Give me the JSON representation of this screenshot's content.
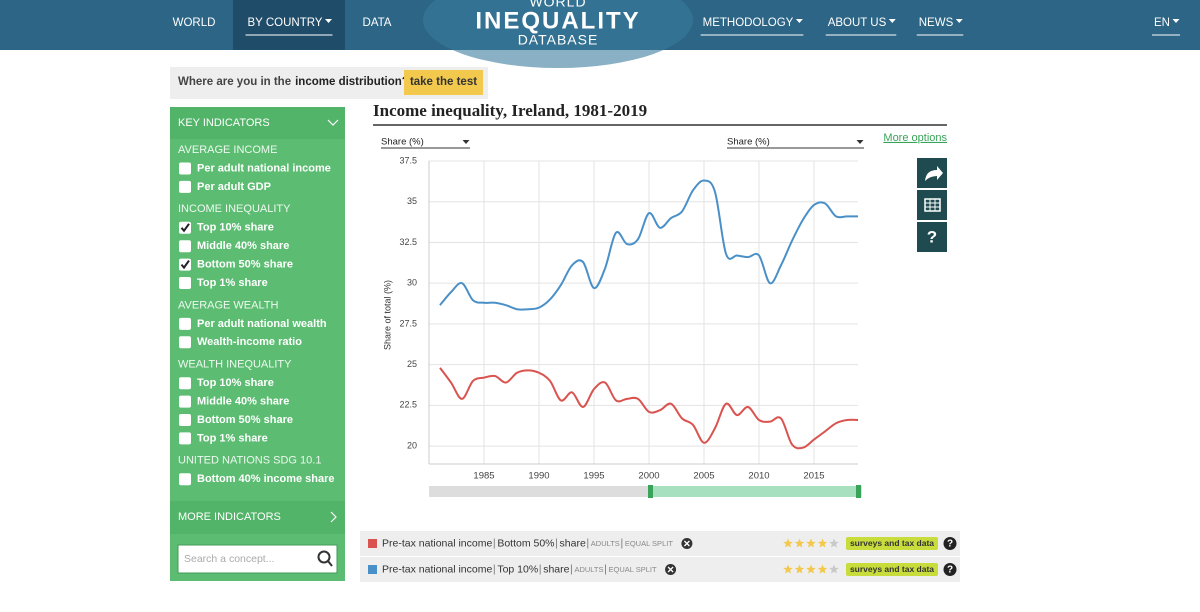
{
  "nav": {
    "items": [
      {
        "label": "WORLD",
        "dropdown": false
      },
      {
        "label": "BY COUNTRY",
        "dropdown": true,
        "active": true
      },
      {
        "label": "DATA",
        "dropdown": false
      },
      {
        "label": "METHODOLOGY",
        "dropdown": true
      },
      {
        "label": "ABOUT US",
        "dropdown": true
      },
      {
        "label": "NEWS",
        "dropdown": true
      },
      {
        "label": "EN",
        "dropdown": true
      }
    ],
    "logo": [
      "WORLD",
      "INEQUALITY",
      "DATABASE"
    ]
  },
  "banner": {
    "text": "Where are you in the",
    "bold": "income distribution?",
    "button": "take the test"
  },
  "sidebar": {
    "header": "KEY INDICATORS",
    "sections": [
      {
        "title": "AVERAGE INCOME",
        "items": [
          {
            "label": "Per adult national income",
            "checked": false
          },
          {
            "label": "Per adult GDP",
            "checked": false
          }
        ]
      },
      {
        "title": "INCOME INEQUALITY",
        "items": [
          {
            "label": "Top 10% share",
            "checked": true
          },
          {
            "label": "Middle 40% share",
            "checked": false
          },
          {
            "label": "Bottom 50% share",
            "checked": true
          },
          {
            "label": "Top 1% share",
            "checked": false
          }
        ]
      },
      {
        "title": "AVERAGE WEALTH",
        "items": [
          {
            "label": "Per adult national wealth",
            "checked": false
          },
          {
            "label": "Wealth-income ratio",
            "checked": false
          }
        ]
      },
      {
        "title": "WEALTH INEQUALITY",
        "items": [
          {
            "label": "Top 10% share",
            "checked": false
          },
          {
            "label": "Middle 40% share",
            "checked": false
          },
          {
            "label": "Bottom 50% share",
            "checked": false
          },
          {
            "label": "Top 1% share",
            "checked": false
          }
        ]
      },
      {
        "title": "UNITED NATIONS SDG 10.1",
        "items": [
          {
            "label": "Bottom 40% income share",
            "checked": false
          }
        ]
      }
    ],
    "more": "MORE INDICATORS",
    "search_placeholder": "Search a concept..."
  },
  "tools": {
    "more_options": "More options",
    "help": "?"
  },
  "chart_data": {
    "type": "line",
    "title": "Income inequality, Ireland, 1981-2019",
    "selectors": [
      "Share (%)",
      "Share (%)"
    ],
    "ylabel": "Share of total (%)",
    "x": [
      1981,
      1982,
      1983,
      1984,
      1985,
      1986,
      1987,
      1988,
      1989,
      1990,
      1991,
      1992,
      1993,
      1994,
      1995,
      1996,
      1997,
      1998,
      1999,
      2000,
      2001,
      2002,
      2003,
      2004,
      2005,
      2006,
      2007,
      2008,
      2009,
      2010,
      2011,
      2012,
      2013,
      2014,
      2015,
      2016,
      2017,
      2018,
      2019
    ],
    "xlim": [
      1980,
      2019
    ],
    "xticks": [
      1985,
      1990,
      1995,
      2000,
      2005,
      2010,
      2015
    ],
    "ylim": [
      18.9,
      37.5
    ],
    "yticks": [
      20,
      22.5,
      25,
      27.5,
      30,
      32.5,
      35,
      37.5
    ],
    "grid": true,
    "series": [
      {
        "name": "Bottom 50%",
        "color": "#d9534f",
        "values": [
          24.8,
          23.9,
          22.9,
          24.0,
          24.2,
          24.3,
          23.9,
          24.5,
          24.65,
          24.5,
          24.0,
          22.8,
          23.3,
          22.4,
          23.5,
          23.9,
          22.8,
          22.9,
          22.9,
          22.1,
          22.2,
          22.6,
          21.7,
          21.3,
          20.2,
          21.1,
          22.6,
          21.9,
          22.4,
          21.6,
          21.5,
          21.7,
          20.1,
          19.9,
          20.4,
          20.9,
          21.4,
          21.6,
          21.6
        ]
      },
      {
        "name": "Top 10%",
        "color": "#4a90c8",
        "values": [
          28.65,
          29.45,
          30.0,
          28.95,
          28.8,
          28.8,
          28.65,
          28.4,
          28.4,
          28.5,
          29.0,
          29.9,
          31.1,
          31.3,
          29.7,
          30.9,
          33.1,
          32.4,
          32.7,
          34.3,
          33.4,
          34.0,
          34.4,
          35.7,
          36.3,
          35.6,
          31.8,
          31.7,
          31.6,
          31.7,
          30.0,
          31.1,
          32.6,
          33.9,
          34.8,
          34.9,
          34.1,
          34.1,
          34.1
        ]
      }
    ]
  },
  "legend_rows": [
    {
      "series": 0,
      "parts": [
        "Pre-tax national income",
        "Bottom 50%",
        "share"
      ],
      "small": [
        "ADULTS",
        "EQUAL SPLIT"
      ],
      "rating": 4,
      "rating_max": 5,
      "source": "surveys and tax data"
    },
    {
      "series": 1,
      "parts": [
        "Pre-tax national income",
        "Top 10%",
        "share"
      ],
      "small": [
        "ADULTS",
        "EQUAL SPLIT"
      ],
      "rating": 4,
      "rating_max": 5,
      "source": "surveys and tax data"
    }
  ]
}
